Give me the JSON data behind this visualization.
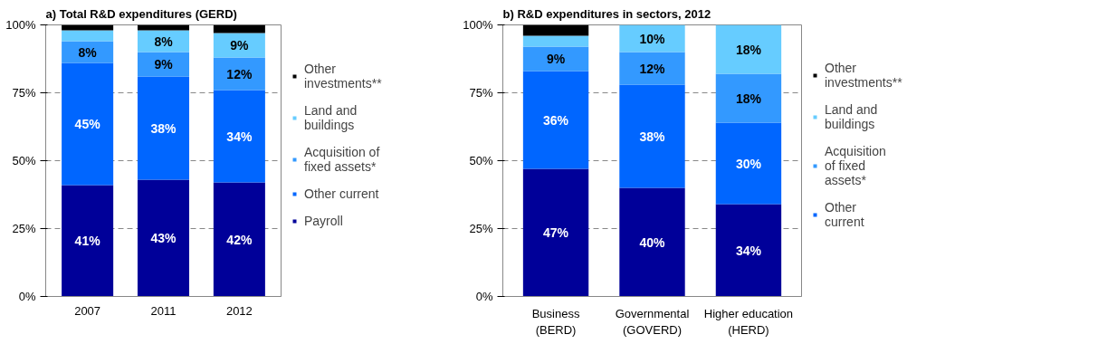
{
  "chart_data": [
    {
      "type": "bar",
      "stacked": true,
      "title": "a) Total R&D expenditures (GERD)",
      "categories": [
        "2007",
        "2011",
        "2012"
      ],
      "ylim": [
        0,
        100
      ],
      "yticks": [
        {
          "value": 0,
          "label": "0%"
        },
        {
          "value": 25,
          "label": "25%"
        },
        {
          "value": 50,
          "label": "50%"
        },
        {
          "value": 75,
          "label": "75%"
        },
        {
          "value": 100,
          "label": "100%"
        }
      ],
      "grid": "y",
      "legend": "right",
      "series": [
        {
          "name": "Payroll",
          "color": "#000099",
          "values": [
            41,
            43,
            42
          ],
          "value_labels": [
            "41%",
            "43%",
            "42%"
          ]
        },
        {
          "name": "Other current",
          "color": "#0066ff",
          "values": [
            45,
            38,
            34
          ],
          "value_labels": [
            "45%",
            "38%",
            "34%"
          ]
        },
        {
          "name": "Acquisition of fixed assets*",
          "color": "#3399ff",
          "values": [
            8,
            9,
            12
          ],
          "value_labels": [
            "8%",
            "9%",
            "12%"
          ]
        },
        {
          "name": "Land and buildings",
          "color": "#66ccff",
          "values": [
            4,
            8,
            9
          ],
          "value_labels": [
            null,
            "8%",
            "9%"
          ]
        },
        {
          "name": "Other investments**",
          "color": "#000000",
          "values": [
            2,
            2,
            3
          ],
          "value_labels": [
            null,
            null,
            null
          ]
        }
      ]
    },
    {
      "type": "bar",
      "stacked": true,
      "title": "b) R&D expenditures in sectors, 2012",
      "categories": [
        "Business\n(BERD)",
        "Governmental\n(GOVERD)",
        "Higher education\n(HERD)"
      ],
      "ylim": [
        0,
        100
      ],
      "yticks": [
        {
          "value": 0,
          "label": "0%"
        },
        {
          "value": 25,
          "label": "25%"
        },
        {
          "value": 50,
          "label": "50%"
        },
        {
          "value": 75,
          "label": "75%"
        },
        {
          "value": 100,
          "label": "100%"
        }
      ],
      "grid": "y",
      "legend": "right",
      "series": [
        {
          "color": "#000099",
          "values": [
            47,
            40,
            34
          ],
          "value_labels": [
            "47%",
            "40%",
            "34%"
          ]
        },
        {
          "name": "Other current",
          "color": "#0066ff",
          "values": [
            36,
            38,
            30
          ],
          "value_labels": [
            "36%",
            "38%",
            "30%"
          ]
        },
        {
          "name": "Acquisition of fixed assets*",
          "color": "#3399ff",
          "values": [
            9,
            12,
            18
          ],
          "value_labels": [
            "9%",
            "12%",
            "18%"
          ]
        },
        {
          "name": "Land and buildings",
          "color": "#66ccff",
          "values": [
            4,
            10,
            18
          ],
          "value_labels": [
            null,
            "10%",
            "18%"
          ]
        },
        {
          "name": "Other investments**",
          "color": "#000000",
          "values": [
            4,
            0,
            0
          ],
          "value_labels": [
            null,
            null,
            null
          ]
        }
      ]
    }
  ]
}
